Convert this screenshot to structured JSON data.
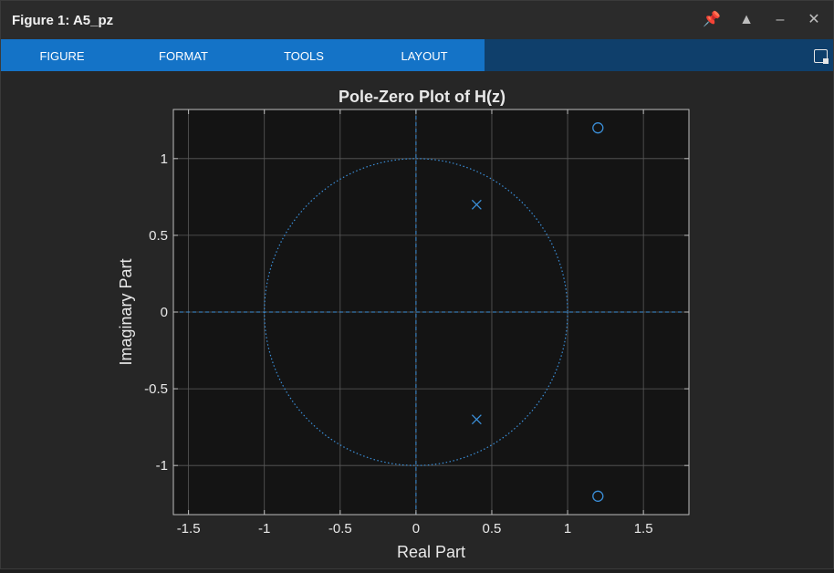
{
  "window": {
    "title": "Figure 1: A5_pz",
    "buttons": {
      "pin": "📌",
      "maximize": "▲",
      "minimize": "–",
      "close": "✕"
    }
  },
  "ribbon": {
    "tabs": [
      "FIGURE",
      "FORMAT",
      "TOOLS",
      "LAYOUT"
    ]
  },
  "chart_data": {
    "type": "scatter",
    "title": "Pole-Zero Plot of H(z)",
    "xlabel": "Real Part",
    "ylabel": "Imaginary Part",
    "xlim": [
      -1.6,
      1.8
    ],
    "ylim": [
      -1.32,
      1.32
    ],
    "xticks": [
      -1.5,
      -1,
      -0.5,
      0,
      0.5,
      1,
      1.5
    ],
    "xtick_labels": [
      "-1.5",
      "-1",
      "-0.5",
      "0",
      "0.5",
      "1",
      "1.5"
    ],
    "yticks": [
      -1,
      -0.5,
      0,
      0.5,
      1
    ],
    "ytick_labels": [
      "-1",
      "-0.5",
      "0",
      "0.5",
      "1"
    ],
    "grid": true,
    "unit_circle": true,
    "series": [
      {
        "marker": "x",
        "points": [
          [
            0.4,
            0.7
          ],
          [
            0.4,
            -0.7
          ]
        ]
      },
      {
        "marker": "o",
        "points": [
          [
            1.2,
            1.2
          ],
          [
            1.2,
            -1.2
          ]
        ]
      }
    ],
    "colors": {
      "axes_bg": "#141414",
      "grid": "#5a5a5a",
      "marker": "#3b8fd9",
      "text": "#e8e8e8"
    }
  }
}
